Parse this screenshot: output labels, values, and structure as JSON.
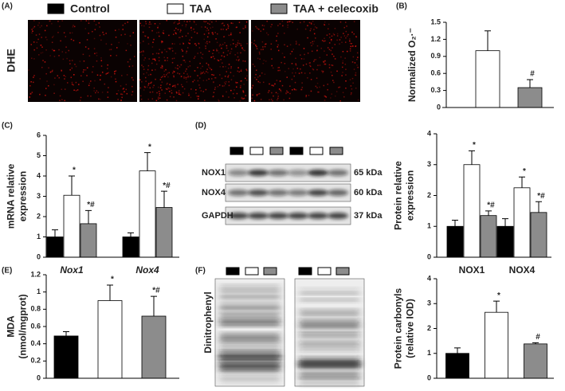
{
  "panel_labels": [
    "(A)",
    "(B)",
    "(C)",
    "(D)",
    "(E)",
    "(F)"
  ],
  "legend": [
    {
      "name": "Control",
      "color": "#000000"
    },
    {
      "name": "TAA",
      "color": "#ffffff"
    },
    {
      "name": "TAA + celecoxib",
      "color": "#8c8c8c"
    }
  ],
  "dhe_label": "DHE",
  "blot_d": [
    {
      "name": "NOX1",
      "size": "65 kDa"
    },
    {
      "name": "NOX4",
      "size": "60 kDa"
    },
    {
      "name": "GAPDH",
      "size": "37 kDa"
    }
  ],
  "blot_f_label": "Dinitrophenyl",
  "chart_data": [
    {
      "type": "bar",
      "ylabel": [
        "Normalized O₂·⁻"
      ],
      "categories": [
        null
      ],
      "ylim": [
        0,
        1.5
      ],
      "yticks": [
        0,
        0.3,
        0.6,
        0.9,
        1.2,
        1.5
      ],
      "series": [
        {
          "values": [
            0
          ],
          "errors": [
            0
          ],
          "marks": [
            null
          ]
        },
        {
          "values": [
            1.0
          ],
          "errors": [
            0.35
          ],
          "marks": [
            null
          ]
        },
        {
          "values": [
            0.35
          ],
          "errors": [
            0.14
          ],
          "marks": [
            "#"
          ]
        }
      ]
    },
    {
      "type": "bar",
      "ylabel": [
        "mRNA relative",
        "expression"
      ],
      "categories": [
        "Nox1",
        "Nox4"
      ],
      "ylim": [
        0,
        6
      ],
      "yticks": [
        0,
        1,
        2,
        3,
        4,
        5,
        6
      ],
      "series": [
        {
          "values": [
            1,
            1
          ],
          "errors": [
            0.35,
            0.2
          ],
          "marks": [
            null,
            null
          ]
        },
        {
          "values": [
            3.05,
            4.25
          ],
          "errors": [
            0.95,
            0.9
          ],
          "marks": [
            "*",
            "*"
          ]
        },
        {
          "values": [
            1.65,
            2.45
          ],
          "errors": [
            0.65,
            0.8
          ],
          "marks": [
            "*#",
            "*#"
          ]
        }
      ]
    },
    {
      "type": "bar",
      "ylabel": [
        "Protein relative",
        "expression"
      ],
      "categories": [
        "NOX1",
        "NOX4"
      ],
      "ylim": [
        0,
        4
      ],
      "yticks": [
        0,
        1,
        2,
        3,
        4
      ],
      "series": [
        {
          "values": [
            1,
            1
          ],
          "errors": [
            0.2,
            0.25
          ],
          "marks": [
            null,
            null
          ]
        },
        {
          "values": [
            3.0,
            2.25
          ],
          "errors": [
            0.45,
            0.35
          ],
          "marks": [
            "*",
            "*"
          ]
        },
        {
          "values": [
            1.35,
            1.45
          ],
          "errors": [
            0.15,
            0.35
          ],
          "marks": [
            "*#",
            "*#"
          ]
        }
      ]
    },
    {
      "type": "bar",
      "ylabel": [
        "MDA",
        "(nmol/mgprot)"
      ],
      "categories": [
        null
      ],
      "ylim": [
        0,
        1.2
      ],
      "yticks": [
        0,
        0.2,
        0.4,
        0.6,
        0.8,
        1,
        1.2
      ],
      "series": [
        {
          "values": [
            0.49
          ],
          "errors": [
            0.05
          ],
          "marks": [
            null
          ]
        },
        {
          "values": [
            0.9
          ],
          "errors": [
            0.18
          ],
          "marks": [
            "*"
          ]
        },
        {
          "values": [
            0.72
          ],
          "errors": [
            0.23
          ],
          "marks": [
            "*#"
          ]
        }
      ]
    },
    {
      "type": "bar",
      "ylabel": [
        "Protein carbonyls",
        "(relative IOD)"
      ],
      "categories": [
        null
      ],
      "ylim": [
        0,
        4
      ],
      "yticks": [
        0,
        1,
        2,
        3,
        4
      ],
      "series": [
        {
          "values": [
            1
          ],
          "errors": [
            0.22
          ],
          "marks": [
            null
          ]
        },
        {
          "values": [
            2.65
          ],
          "errors": [
            0.45
          ],
          "marks": [
            "*"
          ]
        },
        {
          "values": [
            1.38
          ],
          "errors": [
            0.05
          ],
          "marks": [
            "#"
          ]
        }
      ]
    }
  ]
}
